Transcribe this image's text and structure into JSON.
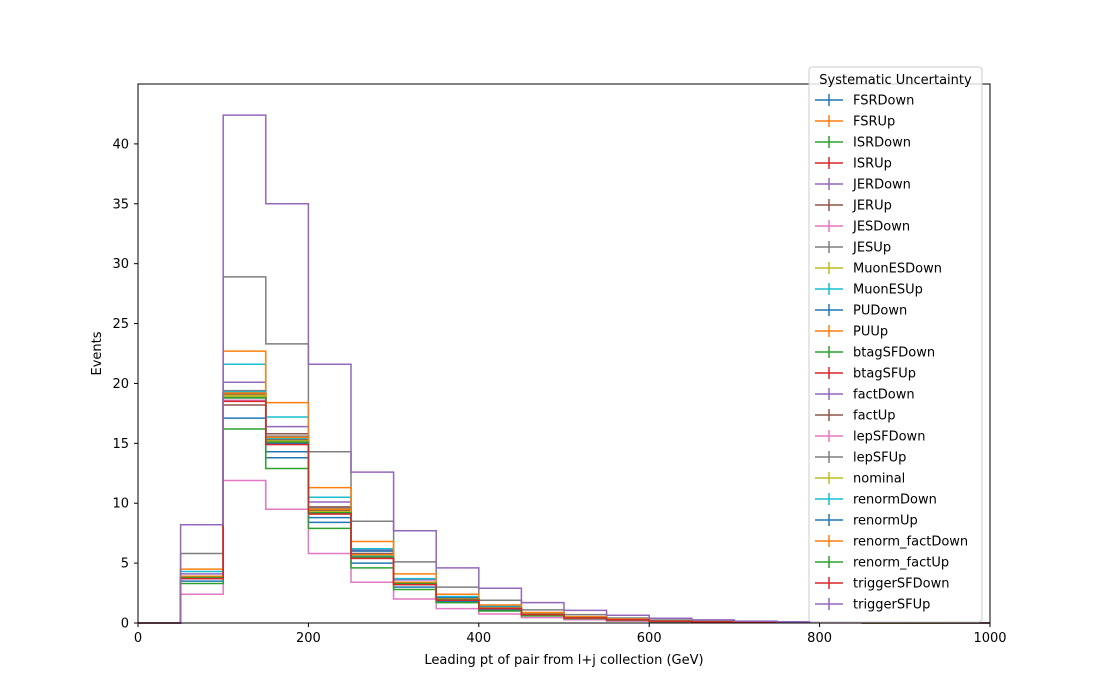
{
  "chart_data": {
    "type": "line",
    "style": "step-histogram",
    "title": "",
    "xlabel": "Leading pt of pair from l+j collection (GeV)",
    "ylabel": "Events",
    "xlim": [
      0,
      1000
    ],
    "ylim": [
      0,
      45
    ],
    "xticks": [
      0,
      200,
      400,
      600,
      800,
      1000
    ],
    "yticks": [
      0,
      5,
      10,
      15,
      20,
      25,
      30,
      35,
      40
    ],
    "grid": false,
    "legend_title": "Systematic Uncertainty",
    "legend_position": "top-right",
    "bin_edges": [
      0,
      50,
      100,
      150,
      200,
      250,
      300,
      350,
      400,
      450,
      500,
      550,
      600,
      650,
      700,
      750,
      800,
      850,
      900,
      950,
      1000
    ],
    "series": [
      {
        "name": "FSRDown",
        "color": "#1f77b4",
        "values": [
          0,
          3.5,
          17.1,
          13.8,
          8.4,
          5.0,
          3.0,
          1.8,
          1.1,
          0.65,
          0.4,
          0.25,
          0.15,
          0.1,
          0.06,
          0.04,
          0.02,
          0.01,
          0.01,
          0.01
        ]
      },
      {
        "name": "FSRUp",
        "color": "#ff7f0e",
        "values": [
          0,
          3.9,
          19.0,
          15.0,
          9.3,
          5.6,
          3.3,
          2.0,
          1.2,
          0.72,
          0.44,
          0.27,
          0.16,
          0.1,
          0.06,
          0.04,
          0.02,
          0.01,
          0.01,
          0.01
        ]
      },
      {
        "name": "ISRDown",
        "color": "#2ca02c",
        "values": [
          0,
          3.8,
          18.9,
          15.2,
          9.2,
          5.5,
          3.3,
          2.0,
          1.2,
          0.71,
          0.43,
          0.26,
          0.16,
          0.1,
          0.06,
          0.04,
          0.02,
          0.01,
          0.01,
          0.01
        ]
      },
      {
        "name": "ISRUp",
        "color": "#d62728",
        "values": [
          0,
          3.9,
          19.2,
          15.4,
          9.4,
          5.6,
          3.3,
          2.0,
          1.2,
          0.72,
          0.44,
          0.27,
          0.16,
          0.1,
          0.06,
          0.04,
          0.02,
          0.01,
          0.01,
          0.01
        ]
      },
      {
        "name": "JERDown",
        "color": "#9467bd",
        "values": [
          0,
          4.1,
          20.1,
          16.4,
          10.1,
          6.1,
          3.6,
          2.2,
          1.3,
          0.78,
          0.47,
          0.29,
          0.17,
          0.11,
          0.07,
          0.04,
          0.02,
          0.01,
          0.01,
          0.01
        ]
      },
      {
        "name": "JERUp",
        "color": "#8c564b",
        "values": [
          0,
          3.7,
          18.2,
          15.8,
          9.7,
          5.8,
          3.4,
          2.1,
          1.25,
          0.75,
          0.45,
          0.28,
          0.17,
          0.1,
          0.06,
          0.04,
          0.02,
          0.01,
          0.01,
          0.01
        ]
      },
      {
        "name": "JESDown",
        "color": "#e377c2",
        "values": [
          0,
          2.4,
          11.9,
          9.5,
          5.8,
          3.4,
          2.0,
          1.2,
          0.75,
          0.45,
          0.27,
          0.16,
          0.1,
          0.06,
          0.04,
          0.02,
          0.01,
          0.01,
          0.0,
          0.0
        ]
      },
      {
        "name": "JESUp",
        "color": "#7f7f7f",
        "values": [
          0,
          5.8,
          28.9,
          23.3,
          14.3,
          8.5,
          5.1,
          3.0,
          1.9,
          1.1,
          0.7,
          0.42,
          0.25,
          0.16,
          0.1,
          0.06,
          0.03,
          0.02,
          0.01,
          0.01
        ]
      },
      {
        "name": "MuonESDown",
        "color": "#bcbd22",
        "values": [
          0,
          3.8,
          18.9,
          15.2,
          9.3,
          5.5,
          3.3,
          2.0,
          1.2,
          0.71,
          0.43,
          0.26,
          0.16,
          0.1,
          0.06,
          0.04,
          0.02,
          0.01,
          0.01,
          0.01
        ]
      },
      {
        "name": "MuonESUp",
        "color": "#17becf",
        "values": [
          0,
          4.3,
          21.6,
          17.2,
          10.5,
          6.2,
          3.7,
          2.2,
          1.4,
          0.8,
          0.49,
          0.3,
          0.18,
          0.11,
          0.07,
          0.04,
          0.02,
          0.01,
          0.01,
          0.01
        ]
      },
      {
        "name": "PUDown",
        "color": "#1f77b4",
        "values": [
          0,
          3.9,
          19.1,
          14.3,
          8.8,
          6.0,
          3.4,
          2.1,
          1.3,
          0.74,
          0.45,
          0.28,
          0.17,
          0.1,
          0.06,
          0.04,
          0.02,
          0.01,
          0.01,
          0.01
        ]
      },
      {
        "name": "PUUp",
        "color": "#ff7f0e",
        "values": [
          0,
          4.5,
          22.7,
          18.4,
          11.3,
          6.8,
          4.1,
          2.4,
          1.5,
          0.88,
          0.53,
          0.32,
          0.19,
          0.12,
          0.07,
          0.04,
          0.02,
          0.01,
          0.01,
          0.01
        ]
      },
      {
        "name": "btagSFDown",
        "color": "#2ca02c",
        "values": [
          0,
          3.3,
          16.2,
          12.9,
          7.9,
          4.6,
          2.8,
          1.7,
          1.0,
          0.6,
          0.37,
          0.22,
          0.13,
          0.08,
          0.05,
          0.03,
          0.02,
          0.01,
          0.0,
          0.0
        ]
      },
      {
        "name": "btagSFUp",
        "color": "#d62728",
        "values": [
          0,
          3.9,
          19.3,
          15.5,
          9.4,
          5.6,
          3.4,
          2.0,
          1.2,
          0.72,
          0.44,
          0.27,
          0.16,
          0.1,
          0.06,
          0.04,
          0.02,
          0.01,
          0.01,
          0.01
        ]
      },
      {
        "name": "factDown",
        "color": "#9467bd",
        "values": [
          0,
          3.8,
          19.0,
          15.1,
          9.3,
          5.5,
          3.3,
          2.0,
          1.2,
          0.71,
          0.43,
          0.26,
          0.16,
          0.1,
          0.06,
          0.04,
          0.02,
          0.01,
          0.01,
          0.01
        ]
      },
      {
        "name": "factUp",
        "color": "#8c564b",
        "values": [
          0,
          3.8,
          19.1,
          15.3,
          9.4,
          5.6,
          3.3,
          2.0,
          1.2,
          0.72,
          0.44,
          0.27,
          0.16,
          0.1,
          0.06,
          0.04,
          0.02,
          0.01,
          0.01,
          0.01
        ]
      },
      {
        "name": "lepSFDown",
        "color": "#e377c2",
        "values": [
          0,
          3.7,
          18.6,
          14.9,
          9.1,
          5.4,
          3.2,
          1.9,
          1.2,
          0.7,
          0.42,
          0.26,
          0.15,
          0.09,
          0.06,
          0.04,
          0.02,
          0.01,
          0.01,
          0.01
        ]
      },
      {
        "name": "lepSFUp",
        "color": "#7f7f7f",
        "values": [
          0,
          3.9,
          19.4,
          15.6,
          9.6,
          5.7,
          3.4,
          2.0,
          1.25,
          0.73,
          0.45,
          0.27,
          0.16,
          0.1,
          0.06,
          0.04,
          0.02,
          0.01,
          0.01,
          0.01
        ]
      },
      {
        "name": "nominal",
        "color": "#bcbd22",
        "values": [
          0,
          3.8,
          19.0,
          15.2,
          9.3,
          5.5,
          3.3,
          2.0,
          1.2,
          0.71,
          0.43,
          0.26,
          0.16,
          0.1,
          0.06,
          0.04,
          0.02,
          0.01,
          0.01,
          0.01
        ]
      },
      {
        "name": "renormDown",
        "color": "#17becf",
        "values": [
          0,
          3.9,
          19.3,
          15.4,
          9.5,
          5.6,
          3.4,
          2.0,
          1.2,
          0.72,
          0.44,
          0.27,
          0.16,
          0.1,
          0.06,
          0.04,
          0.02,
          0.01,
          0.01,
          0.01
        ]
      },
      {
        "name": "renormUp",
        "color": "#1f77b4",
        "values": [
          0,
          3.8,
          18.8,
          15.0,
          9.2,
          5.5,
          3.3,
          2.0,
          1.2,
          0.7,
          0.43,
          0.26,
          0.16,
          0.1,
          0.06,
          0.04,
          0.02,
          0.01,
          0.01,
          0.01
        ]
      },
      {
        "name": "renorm_factDown",
        "color": "#ff7f0e",
        "values": [
          0,
          3.9,
          19.2,
          15.5,
          9.5,
          5.7,
          3.4,
          2.0,
          1.25,
          0.73,
          0.44,
          0.27,
          0.16,
          0.1,
          0.06,
          0.04,
          0.02,
          0.01,
          0.01,
          0.01
        ]
      },
      {
        "name": "renorm_factUp",
        "color": "#2ca02c",
        "values": [
          0,
          3.8,
          18.8,
          15.1,
          9.2,
          5.5,
          3.3,
          1.95,
          1.2,
          0.7,
          0.43,
          0.26,
          0.16,
          0.1,
          0.06,
          0.04,
          0.02,
          0.01,
          0.01,
          0.01
        ]
      },
      {
        "name": "triggerSFDown",
        "color": "#d62728",
        "values": [
          0,
          3.7,
          18.5,
          14.9,
          9.1,
          5.4,
          3.2,
          1.9,
          1.2,
          0.7,
          0.42,
          0.26,
          0.15,
          0.09,
          0.06,
          0.04,
          0.02,
          0.01,
          0.01,
          0.01
        ]
      },
      {
        "name": "triggerSFUp",
        "color": "#9467bd",
        "values": [
          0,
          8.2,
          42.4,
          35.0,
          21.6,
          12.6,
          7.7,
          4.6,
          2.9,
          1.7,
          1.05,
          0.65,
          0.4,
          0.26,
          0.16,
          0.1,
          0.06,
          0.04,
          0.02,
          0.01
        ]
      }
    ]
  }
}
